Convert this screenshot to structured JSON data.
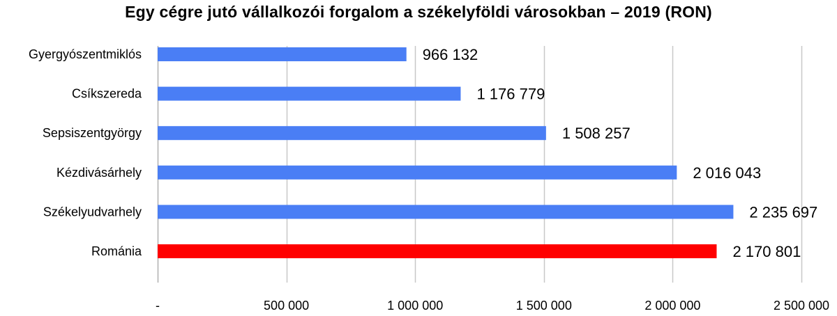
{
  "chart_data": {
    "type": "bar",
    "orientation": "horizontal",
    "title": "Egy cégre jutó vállalkozói forgalom a székelyföldi városokban – 2019 (RON)",
    "categories": [
      "Gyergyószentmiklós",
      "Csíkszereda",
      "Sepsiszentgyörgy",
      "Kézdivásárhely",
      "Székelyudvarhely",
      "Románia"
    ],
    "values": [
      966132,
      1176779,
      1508257,
      2016043,
      2235697,
      2170801
    ],
    "value_labels": [
      "966 132",
      "1 176 779",
      "1 508 257",
      "2 016 043",
      "2 235 697",
      "2 170 801"
    ],
    "colors": [
      "#4a7ef5",
      "#4a7ef5",
      "#4a7ef5",
      "#4a7ef5",
      "#4a7ef5",
      "#ff0000"
    ],
    "xlim": [
      0,
      2500000
    ],
    "xticks": [
      0,
      500000,
      1000000,
      1500000,
      2000000,
      2500000
    ],
    "xtick_labels": [
      "-",
      "500 000",
      "1 000 000",
      "1 500 000",
      "2 000 000",
      "2 500 000"
    ],
    "grid": true,
    "gridline_color": "#c8c8c8"
  }
}
